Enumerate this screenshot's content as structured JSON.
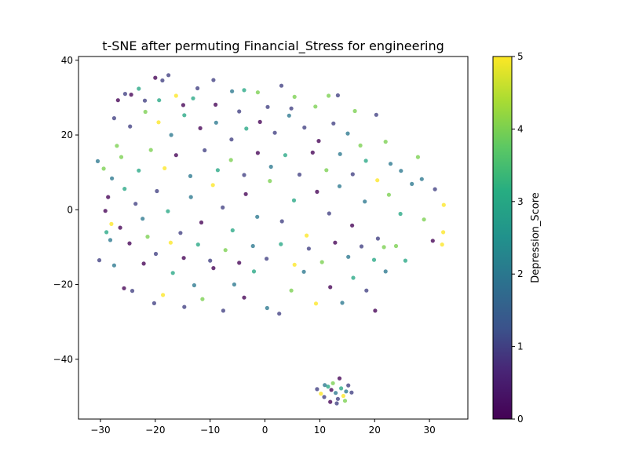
{
  "chart_data": {
    "type": "scatter",
    "title": "t-SNE after permuting Financial_Stress for engineering",
    "xlabel": "",
    "ylabel": "",
    "xlim": [
      -34,
      37
    ],
    "ylim": [
      -56,
      41
    ],
    "xticks": [
      -30,
      -20,
      -10,
      0,
      10,
      20,
      30
    ],
    "yticks": [
      -40,
      -20,
      0,
      20,
      40
    ],
    "grid": false,
    "colormap": "viridis",
    "colorbar": {
      "label": "Depression_Score",
      "range": [
        0,
        5
      ],
      "ticks": [
        0,
        1,
        2,
        3,
        4,
        5
      ]
    },
    "points": [
      {
        "x": -30.5,
        "y": 13.0,
        "c": 2
      },
      {
        "x": -29.4,
        "y": 11.0,
        "c": 4
      },
      {
        "x": -28.6,
        "y": 3.4,
        "c": 0
      },
      {
        "x": -30.2,
        "y": -13.5,
        "c": 1
      },
      {
        "x": -28.9,
        "y": -6.0,
        "c": 3
      },
      {
        "x": -27.5,
        "y": 24.5,
        "c": 1
      },
      {
        "x": -26.8,
        "y": 29.3,
        "c": 0
      },
      {
        "x": -25.5,
        "y": 31.0,
        "c": 1
      },
      {
        "x": -24.4,
        "y": 30.8,
        "c": 0
      },
      {
        "x": -23.0,
        "y": 32.4,
        "c": 3
      },
      {
        "x": -21.9,
        "y": 29.2,
        "c": 1
      },
      {
        "x": -20.0,
        "y": 35.3,
        "c": 0
      },
      {
        "x": -18.7,
        "y": 34.6,
        "c": 1
      },
      {
        "x": -17.6,
        "y": 36.0,
        "c": 1
      },
      {
        "x": -16.2,
        "y": 30.5,
        "c": 5
      },
      {
        "x": -14.9,
        "y": 28.0,
        "c": 0
      },
      {
        "x": -12.3,
        "y": 32.5,
        "c": 1
      },
      {
        "x": -9.4,
        "y": 34.7,
        "c": 1
      },
      {
        "x": -6.0,
        "y": 31.7,
        "c": 2
      },
      {
        "x": -3.8,
        "y": 32.0,
        "c": 3
      },
      {
        "x": -1.3,
        "y": 31.4,
        "c": 4
      },
      {
        "x": 3.0,
        "y": 33.2,
        "c": 1
      },
      {
        "x": 5.4,
        "y": 30.2,
        "c": 4
      },
      {
        "x": 11.6,
        "y": 30.5,
        "c": 4
      },
      {
        "x": 13.3,
        "y": 30.6,
        "c": 1
      },
      {
        "x": -27.0,
        "y": 17.1,
        "c": 4
      },
      {
        "x": -24.6,
        "y": 22.3,
        "c": 1
      },
      {
        "x": -21.8,
        "y": 26.2,
        "c": 4
      },
      {
        "x": -19.4,
        "y": 23.4,
        "c": 5
      },
      {
        "x": -17.1,
        "y": 20.0,
        "c": 2
      },
      {
        "x": -14.7,
        "y": 25.3,
        "c": 3
      },
      {
        "x": -11.8,
        "y": 21.8,
        "c": 0
      },
      {
        "x": -8.9,
        "y": 23.3,
        "c": 2
      },
      {
        "x": -6.1,
        "y": 18.8,
        "c": 1
      },
      {
        "x": -3.4,
        "y": 21.7,
        "c": 3
      },
      {
        "x": -0.9,
        "y": 23.5,
        "c": 0
      },
      {
        "x": 1.8,
        "y": 20.6,
        "c": 1
      },
      {
        "x": 4.4,
        "y": 25.2,
        "c": 2
      },
      {
        "x": 7.2,
        "y": 22.0,
        "c": 1
      },
      {
        "x": 9.8,
        "y": 18.4,
        "c": 0
      },
      {
        "x": 12.5,
        "y": 23.1,
        "c": 1
      },
      {
        "x": 15.1,
        "y": 20.4,
        "c": 2
      },
      {
        "x": 17.4,
        "y": 17.2,
        "c": 4
      },
      {
        "x": 20.3,
        "y": 25.4,
        "c": 1
      },
      {
        "x": 22.0,
        "y": 18.2,
        "c": 4
      },
      {
        "x": 27.9,
        "y": 14.1,
        "c": 4
      },
      {
        "x": 24.8,
        "y": 10.4,
        "c": 2
      },
      {
        "x": -28.2,
        "y": -8.1,
        "c": 2
      },
      {
        "x": -26.4,
        "y": -4.8,
        "c": 0
      },
      {
        "x": -25.6,
        "y": 5.6,
        "c": 3
      },
      {
        "x": -23.6,
        "y": 1.6,
        "c": 1
      },
      {
        "x": -21.4,
        "y": -7.2,
        "c": 4
      },
      {
        "x": -19.7,
        "y": 5.0,
        "c": 1
      },
      {
        "x": -17.7,
        "y": -0.4,
        "c": 3
      },
      {
        "x": -15.4,
        "y": -6.2,
        "c": 1
      },
      {
        "x": -13.5,
        "y": 3.4,
        "c": 2
      },
      {
        "x": -11.6,
        "y": -3.4,
        "c": 0
      },
      {
        "x": -9.5,
        "y": 6.6,
        "c": 5
      },
      {
        "x": -7.7,
        "y": 0.6,
        "c": 1
      },
      {
        "x": -5.9,
        "y": -5.5,
        "c": 3
      },
      {
        "x": -3.5,
        "y": 4.2,
        "c": 0
      },
      {
        "x": -1.4,
        "y": -1.9,
        "c": 2
      },
      {
        "x": 0.9,
        "y": 7.7,
        "c": 4
      },
      {
        "x": 3.1,
        "y": -3.1,
        "c": 1
      },
      {
        "x": 5.3,
        "y": 2.5,
        "c": 3
      },
      {
        "x": 7.6,
        "y": -6.9,
        "c": 5
      },
      {
        "x": 9.5,
        "y": 4.8,
        "c": 0
      },
      {
        "x": 11.7,
        "y": -1.0,
        "c": 1
      },
      {
        "x": 13.6,
        "y": 6.3,
        "c": 2
      },
      {
        "x": 15.9,
        "y": -4.2,
        "c": 0
      },
      {
        "x": 18.2,
        "y": 2.2,
        "c": 2
      },
      {
        "x": 20.6,
        "y": -7.7,
        "c": 1
      },
      {
        "x": 22.6,
        "y": 4.0,
        "c": 4
      },
      {
        "x": 24.7,
        "y": -1.1,
        "c": 3
      },
      {
        "x": 26.8,
        "y": 6.9,
        "c": 2
      },
      {
        "x": 29.0,
        "y": -2.6,
        "c": 4
      },
      {
        "x": 31.0,
        "y": 5.5,
        "c": 1
      },
      {
        "x": 32.6,
        "y": 1.3,
        "c": 5
      },
      {
        "x": 32.5,
        "y": -6.0,
        "c": 5
      },
      {
        "x": 32.3,
        "y": -9.3,
        "c": 5
      },
      {
        "x": 30.6,
        "y": -8.3,
        "c": 0
      },
      {
        "x": 28.6,
        "y": 8.2,
        "c": 2
      },
      {
        "x": -27.5,
        "y": -14.9,
        "c": 2
      },
      {
        "x": -25.7,
        "y": -21.0,
        "c": 0
      },
      {
        "x": -24.2,
        "y": -21.7,
        "c": 1
      },
      {
        "x": -22.1,
        "y": -14.4,
        "c": 0
      },
      {
        "x": -20.2,
        "y": -25.0,
        "c": 1
      },
      {
        "x": -18.6,
        "y": -22.8,
        "c": 5
      },
      {
        "x": -16.8,
        "y": -16.9,
        "c": 3
      },
      {
        "x": -14.7,
        "y": -26.0,
        "c": 1
      },
      {
        "x": -12.9,
        "y": -20.2,
        "c": 2
      },
      {
        "x": -11.4,
        "y": -23.9,
        "c": 4
      },
      {
        "x": -9.4,
        "y": -15.6,
        "c": 0
      },
      {
        "x": -7.6,
        "y": -27.0,
        "c": 1
      },
      {
        "x": -5.6,
        "y": -20.0,
        "c": 2
      },
      {
        "x": -3.8,
        "y": -23.5,
        "c": 0
      },
      {
        "x": -2.0,
        "y": -16.5,
        "c": 3
      },
      {
        "x": 0.4,
        "y": -26.3,
        "c": 2
      },
      {
        "x": 2.6,
        "y": -27.8,
        "c": 1
      },
      {
        "x": 4.8,
        "y": -21.6,
        "c": 4
      },
      {
        "x": 7.1,
        "y": -16.6,
        "c": 2
      },
      {
        "x": 9.3,
        "y": -25.1,
        "c": 5
      },
      {
        "x": 11.9,
        "y": -20.7,
        "c": 0
      },
      {
        "x": 14.1,
        "y": -24.9,
        "c": 2
      },
      {
        "x": 16.1,
        "y": -18.2,
        "c": 3
      },
      {
        "x": 18.5,
        "y": -21.6,
        "c": 1
      },
      {
        "x": 20.1,
        "y": -27.0,
        "c": 0
      },
      {
        "x": 22.0,
        "y": -16.5,
        "c": 2
      },
      {
        "x": 25.6,
        "y": -13.6,
        "c": 3
      },
      {
        "x": 23.9,
        "y": -9.7,
        "c": 4
      },
      {
        "x": -29.1,
        "y": -0.3,
        "c": 0
      },
      {
        "x": -27.9,
        "y": 8.4,
        "c": 2
      },
      {
        "x": -26.2,
        "y": 14.1,
        "c": 4
      },
      {
        "x": -23.0,
        "y": 10.5,
        "c": 3
      },
      {
        "x": -20.8,
        "y": 16.0,
        "c": 4
      },
      {
        "x": -18.3,
        "y": 11.1,
        "c": 5
      },
      {
        "x": -16.2,
        "y": 14.6,
        "c": 0
      },
      {
        "x": -13.6,
        "y": 9.0,
        "c": 2
      },
      {
        "x": -11.0,
        "y": 15.9,
        "c": 1
      },
      {
        "x": -8.6,
        "y": 10.6,
        "c": 3
      },
      {
        "x": -6.2,
        "y": 13.3,
        "c": 4
      },
      {
        "x": -3.8,
        "y": 9.3,
        "c": 1
      },
      {
        "x": -1.3,
        "y": 15.2,
        "c": 0
      },
      {
        "x": 1.1,
        "y": 11.5,
        "c": 2
      },
      {
        "x": 3.7,
        "y": 14.6,
        "c": 3
      },
      {
        "x": 6.3,
        "y": 9.4,
        "c": 1
      },
      {
        "x": 8.7,
        "y": 15.3,
        "c": 0
      },
      {
        "x": 11.2,
        "y": 10.6,
        "c": 4
      },
      {
        "x": 13.7,
        "y": 14.9,
        "c": 2
      },
      {
        "x": 16.0,
        "y": 9.5,
        "c": 1
      },
      {
        "x": 18.4,
        "y": 13.1,
        "c": 3
      },
      {
        "x": 20.5,
        "y": 7.9,
        "c": 5
      },
      {
        "x": 22.9,
        "y": 12.3,
        "c": 2
      },
      {
        "x": -28.0,
        "y": -3.8,
        "c": 5
      },
      {
        "x": -24.7,
        "y": -9.0,
        "c": 0
      },
      {
        "x": -22.3,
        "y": -2.4,
        "c": 2
      },
      {
        "x": -19.9,
        "y": -11.8,
        "c": 1
      },
      {
        "x": -17.2,
        "y": -8.8,
        "c": 5
      },
      {
        "x": -14.8,
        "y": -12.9,
        "c": 0
      },
      {
        "x": -12.2,
        "y": -9.3,
        "c": 3
      },
      {
        "x": -10.0,
        "y": -13.6,
        "c": 1
      },
      {
        "x": -7.2,
        "y": -10.8,
        "c": 4
      },
      {
        "x": -4.7,
        "y": -14.2,
        "c": 0
      },
      {
        "x": -2.2,
        "y": -9.7,
        "c": 2
      },
      {
        "x": 0.3,
        "y": -13.1,
        "c": 1
      },
      {
        "x": 2.9,
        "y": -9.2,
        "c": 3
      },
      {
        "x": 5.4,
        "y": -14.7,
        "c": 5
      },
      {
        "x": 8.0,
        "y": -10.4,
        "c": 1
      },
      {
        "x": 10.4,
        "y": -14.0,
        "c": 4
      },
      {
        "x": 12.8,
        "y": -8.8,
        "c": 0
      },
      {
        "x": 15.2,
        "y": -12.6,
        "c": 2
      },
      {
        "x": 17.6,
        "y": -9.8,
        "c": 1
      },
      {
        "x": 19.9,
        "y": -13.4,
        "c": 3
      },
      {
        "x": 21.7,
        "y": -10.0,
        "c": 4
      },
      {
        "x": -19.3,
        "y": 29.3,
        "c": 3
      },
      {
        "x": -9.0,
        "y": 28.1,
        "c": 0
      },
      {
        "x": 0.5,
        "y": 27.5,
        "c": 1
      },
      {
        "x": 4.8,
        "y": 27.1,
        "c": 1
      },
      {
        "x": 9.2,
        "y": 27.6,
        "c": 4
      },
      {
        "x": -4.7,
        "y": 26.3,
        "c": 1
      },
      {
        "x": -13.1,
        "y": 29.8,
        "c": 3
      },
      {
        "x": 16.4,
        "y": 26.4,
        "c": 4
      },
      {
        "x": 9.5,
        "y": -48.0,
        "c": 1
      },
      {
        "x": 10.2,
        "y": -49.2,
        "c": 5
      },
      {
        "x": 10.8,
        "y": -50.1,
        "c": 1
      },
      {
        "x": 11.5,
        "y": -47.3,
        "c": 3
      },
      {
        "x": 11.9,
        "y": -51.4,
        "c": 0
      },
      {
        "x": 12.4,
        "y": -46.4,
        "c": 4
      },
      {
        "x": 12.9,
        "y": -49.0,
        "c": 2
      },
      {
        "x": 13.3,
        "y": -50.6,
        "c": 1
      },
      {
        "x": 13.6,
        "y": -45.1,
        "c": 0
      },
      {
        "x": 13.9,
        "y": -47.8,
        "c": 3
      },
      {
        "x": 14.3,
        "y": -49.8,
        "c": 5
      },
      {
        "x": 14.8,
        "y": -48.6,
        "c": 2
      },
      {
        "x": 15.2,
        "y": -47.0,
        "c": 1
      },
      {
        "x": 15.8,
        "y": -48.9,
        "c": 1
      },
      {
        "x": 12.1,
        "y": -48.2,
        "c": 0
      },
      {
        "x": 10.9,
        "y": -46.9,
        "c": 2
      },
      {
        "x": 13.1,
        "y": -51.8,
        "c": 1
      },
      {
        "x": 14.6,
        "y": -51.1,
        "c": 4
      }
    ]
  }
}
